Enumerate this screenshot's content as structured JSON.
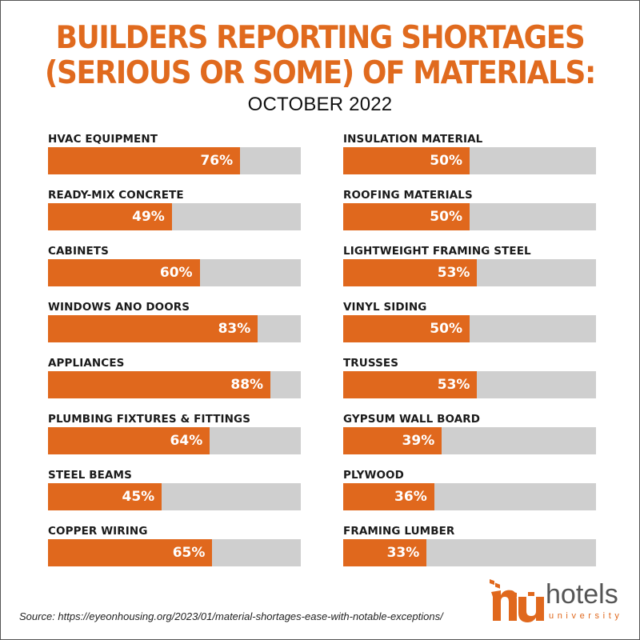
{
  "chart_data": {
    "type": "bar",
    "orientation": "horizontal",
    "title": "BUILDERS REPORTING SHORTAGES (SERIOUS OR SOME) OF MATERIALS:",
    "title_lines": [
      "BUILDERS REPORTING SHORTAGES",
      "(SERIOUS OR SOME) OF MATERIALS:"
    ],
    "subtitle": "OCTOBER 2022",
    "xlabel": "",
    "ylabel": "",
    "unit": "%",
    "xlim": [
      0,
      100
    ],
    "grid": false,
    "legend": "none",
    "colors": {
      "fill": "#e0681d",
      "track": "#cfcfcf",
      "title": "#e06a1e"
    },
    "columns": [
      {
        "items": [
          {
            "label": "HVAC EQUIPMENT",
            "value": 76,
            "display": "76%"
          },
          {
            "label": "READY-MIX CONCRETE",
            "value": 49,
            "display": "49%"
          },
          {
            "label": "CABINETS",
            "value": 60,
            "display": "60%"
          },
          {
            "label": "WINDOWS ANO DOORS",
            "value": 83,
            "display": "83%"
          },
          {
            "label": "APPLIANCES",
            "value": 88,
            "display": "88%"
          },
          {
            "label": "PLUMBING FIXTURES & FITTINGS",
            "value": 64,
            "display": "64%"
          },
          {
            "label": "STEEL BEAMS",
            "value": 45,
            "display": "45%"
          },
          {
            "label": "COPPER WIRING",
            "value": 65,
            "display": "65%"
          }
        ]
      },
      {
        "items": [
          {
            "label": "INSULATION MATERIAL",
            "value": 50,
            "display": "50%"
          },
          {
            "label": "ROOFING MATERIALS",
            "value": 50,
            "display": "50%"
          },
          {
            "label": "LIGHTWEIGHT FRAMING STEEL",
            "value": 53,
            "display": "53%"
          },
          {
            "label": "VINYL SIDING",
            "value": 50,
            "display": "50%"
          },
          {
            "label": "TRUSSES",
            "value": 53,
            "display": "53%"
          },
          {
            "label": "GYPSUM WALL BOARD",
            "value": 39,
            "display": "39%"
          },
          {
            "label": "PLYWOOD",
            "value": 36,
            "display": "36%"
          },
          {
            "label": "FRAMING LUMBER",
            "value": 33,
            "display": "33%"
          }
        ]
      }
    ]
  },
  "footer": {
    "source": "Source: https://eyeonhousing.org/2023/01/material-shortages-ease-with-notable-exceptions/"
  },
  "logo": {
    "icon": "hu-monogram-icon",
    "name": "hotels",
    "tagline": "university"
  }
}
